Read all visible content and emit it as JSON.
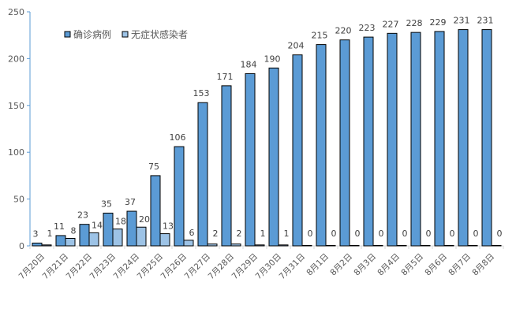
{
  "chart_data": {
    "type": "bar",
    "title": "",
    "xlabel": "",
    "ylabel": "",
    "ylim": [
      0,
      250
    ],
    "yticks": [
      0,
      50,
      100,
      150,
      200,
      250
    ],
    "grid": false,
    "legend_position": "top-left inside",
    "categories": [
      "7月20日",
      "7月21日",
      "7月22日",
      "7月23日",
      "7月24日",
      "7月25日",
      "7月26日",
      "7月27日",
      "7月28日",
      "7月29日",
      "7月30日",
      "7月31日",
      "8月1日",
      "8月2日",
      "8月3日",
      "8月4日",
      "8月5日",
      "8月6日",
      "8月7日",
      "8月8日"
    ],
    "series": [
      {
        "name": "确诊病例",
        "color": "#5B9BD5",
        "values": [
          3,
          11,
          23,
          35,
          37,
          75,
          106,
          153,
          171,
          184,
          190,
          204,
          215,
          220,
          223,
          227,
          228,
          229,
          231,
          231
        ]
      },
      {
        "name": "无症状感染者",
        "color": "#9DC3E6",
        "values": [
          1,
          8,
          14,
          18,
          20,
          13,
          6,
          2,
          2,
          1,
          1,
          0,
          0,
          0,
          0,
          0,
          0,
          0,
          0,
          0
        ]
      }
    ]
  },
  "colors": {
    "axis": "#5B9BD5",
    "xaxis": "#D9D9D9",
    "bar_border": "#000000",
    "text": "#595959"
  }
}
